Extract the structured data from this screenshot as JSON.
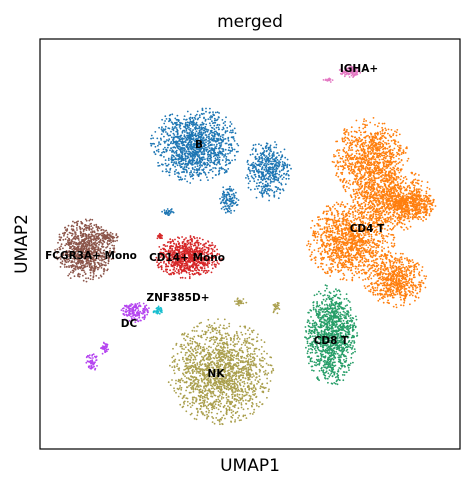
{
  "chart_data": {
    "type": "scatter",
    "title": "merged",
    "xlabel": "UMAP1",
    "ylabel": "UMAP2",
    "grid": false,
    "legend": "on data",
    "clusters": [
      {
        "name": "B",
        "color": "#1f77b4"
      },
      {
        "name": "CD4 T",
        "color": "#ff7f0e"
      },
      {
        "name": "CD8 T",
        "color": "#279e68"
      },
      {
        "name": "NK",
        "color": "#aa9f4d"
      },
      {
        "name": "CD14+ Mono",
        "color": "#d62728"
      },
      {
        "name": "FCGR3A+ Mono",
        "color": "#8c564b"
      },
      {
        "name": "DC",
        "color": "#b545f0"
      },
      {
        "name": "ZNF385D+",
        "color": "#17becf"
      },
      {
        "name": "IGHA+",
        "color": "#e377c2"
      }
    ]
  }
}
